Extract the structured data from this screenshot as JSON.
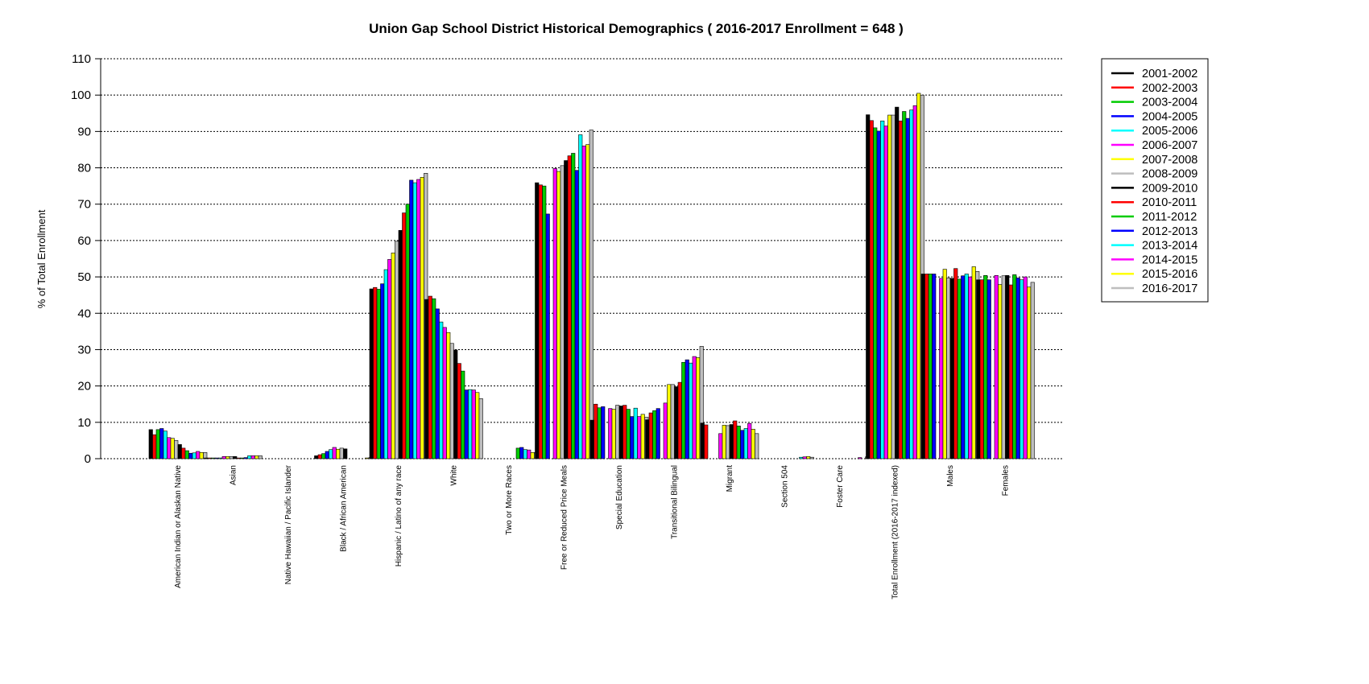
{
  "chart_data": {
    "type": "bar",
    "title": "Union Gap School District Historical Demographics  ( 2016-2017 Enrollment =  648 )",
    "xlabel": "",
    "ylabel": "% of Total Enrollment",
    "ylim": [
      0,
      110
    ],
    "yticks": [
      0,
      10,
      20,
      30,
      40,
      50,
      60,
      70,
      80,
      90,
      100,
      110
    ],
    "grid": true,
    "legend_position": "right",
    "categories": [
      "American Indian or Alaskan Native",
      "Asian",
      "Native Hawaiian / Pacific Islander",
      "Black / African American",
      "Hispanic / Latino of any race",
      "White",
      "Two or More Races",
      "Free or Reduced Price Meals",
      "Special Education",
      "Transitional Bilingual",
      "Migrant",
      "Section 504",
      "Foster Care",
      "Total Enrollment (2016-2017 indexed)",
      "Males",
      "Females"
    ],
    "series": [
      {
        "name": "2001-2002",
        "color": "#000000",
        "values": [
          8,
          0.2,
          0,
          0.8,
          46.7,
          43.8,
          null,
          75.9,
          10.6,
          10.7,
          9.8,
          null,
          null,
          94.6,
          50.8,
          49.2
        ]
      },
      {
        "name": "2002-2003",
        "color": "#ff0000",
        "values": [
          6.6,
          0.2,
          0,
          1.1,
          47.1,
          44.7,
          null,
          75.3,
          15,
          12.6,
          9.3,
          null,
          null,
          93,
          50.8,
          49.2
        ]
      },
      {
        "name": "2003-2004",
        "color": "#00cc00",
        "values": [
          8,
          0.2,
          0,
          1.4,
          46.6,
          44,
          null,
          75,
          14,
          13.2,
          null,
          null,
          null,
          91,
          50.8,
          50.4
        ]
      },
      {
        "name": "2004-2005",
        "color": "#0000ff",
        "values": [
          8.3,
          0.2,
          0,
          2,
          48.1,
          41.2,
          null,
          67.3,
          14.3,
          13.8,
          null,
          null,
          null,
          90.1,
          50.8,
          49.2
        ]
      },
      {
        "name": "2005-2006",
        "color": "#00ffff",
        "values": [
          7.6,
          0.2,
          0,
          2.5,
          52,
          37.6,
          null,
          null,
          null,
          null,
          null,
          null,
          null,
          92.9,
          null,
          null
        ]
      },
      {
        "name": "2006-2007",
        "color": "#ff00ff",
        "values": [
          5.8,
          0.6,
          0,
          3.1,
          54.8,
          36.1,
          null,
          79.8,
          13.8,
          15.3,
          6.9,
          null,
          null,
          91.5,
          49.6,
          50.4
        ]
      },
      {
        "name": "2007-2008",
        "color": "#ffff00",
        "values": [
          5.6,
          0.6,
          0,
          2.6,
          56.6,
          34.7,
          null,
          79,
          13.6,
          20.4,
          9.2,
          null,
          null,
          94.5,
          52.1,
          47.9
        ]
      },
      {
        "name": "2008-2009",
        "color": "#bebebe",
        "values": [
          5,
          0.6,
          0,
          2.9,
          59.8,
          31.7,
          null,
          80.6,
          14.7,
          20.4,
          9.1,
          null,
          null,
          94.5,
          49.7,
          50.3
        ]
      },
      {
        "name": "2009-2010",
        "color": "#000000",
        "values": [
          3.9,
          0.6,
          0,
          2.7,
          62.8,
          29.9,
          null,
          82,
          14.5,
          19.8,
          9.4,
          null,
          null,
          96.7,
          49.6,
          50.4
        ]
      },
      {
        "name": "2010-2011",
        "color": "#ff0000",
        "values": [
          2.9,
          0.2,
          0,
          0,
          67.6,
          26.2,
          null,
          83.3,
          14.7,
          21,
          10.4,
          null,
          null,
          92.9,
          52.3,
          47.8
        ]
      },
      {
        "name": "2011-2012",
        "color": "#00cc00",
        "values": [
          2.2,
          0.2,
          0,
          0,
          70,
          24.1,
          2.9,
          84,
          13.6,
          26.5,
          9,
          null,
          null,
          95.5,
          49.4,
          50.6
        ]
      },
      {
        "name": "2012-2013",
        "color": "#0000ff",
        "values": [
          1.5,
          0.3,
          0,
          0,
          76.6,
          18.9,
          3.1,
          79.3,
          11.6,
          27.2,
          7.8,
          null,
          null,
          93.6,
          50.3,
          49.7
        ]
      },
      {
        "name": "2013-2014",
        "color": "#00ffff",
        "values": [
          1.6,
          0.8,
          0,
          0,
          75.9,
          19,
          2.5,
          89.1,
          13.9,
          26.3,
          8.3,
          0.4,
          null,
          95.9,
          50.8,
          49.2
        ]
      },
      {
        "name": "2014-2015",
        "color": "#ff00ff",
        "values": [
          2,
          0.8,
          0,
          0,
          76.8,
          18.9,
          2.4,
          86,
          11.6,
          28.1,
          9.7,
          0.5,
          0.3,
          97.1,
          50,
          50
        ]
      },
      {
        "name": "2015-2016",
        "color": "#ffff00",
        "values": [
          1.7,
          0.8,
          0,
          0.2,
          77.4,
          18.2,
          1.7,
          86.4,
          12.2,
          27.8,
          8.1,
          0.6,
          null,
          100.5,
          52.8,
          47.2
        ]
      },
      {
        "name": "2016-2017",
        "color": "#bebebe",
        "values": [
          1.7,
          0.8,
          0,
          0.3,
          78.5,
          16.5,
          1.7,
          90.4,
          11.4,
          30.9,
          6.9,
          0.4,
          0.5,
          100,
          51.5,
          48.5
        ]
      }
    ]
  }
}
